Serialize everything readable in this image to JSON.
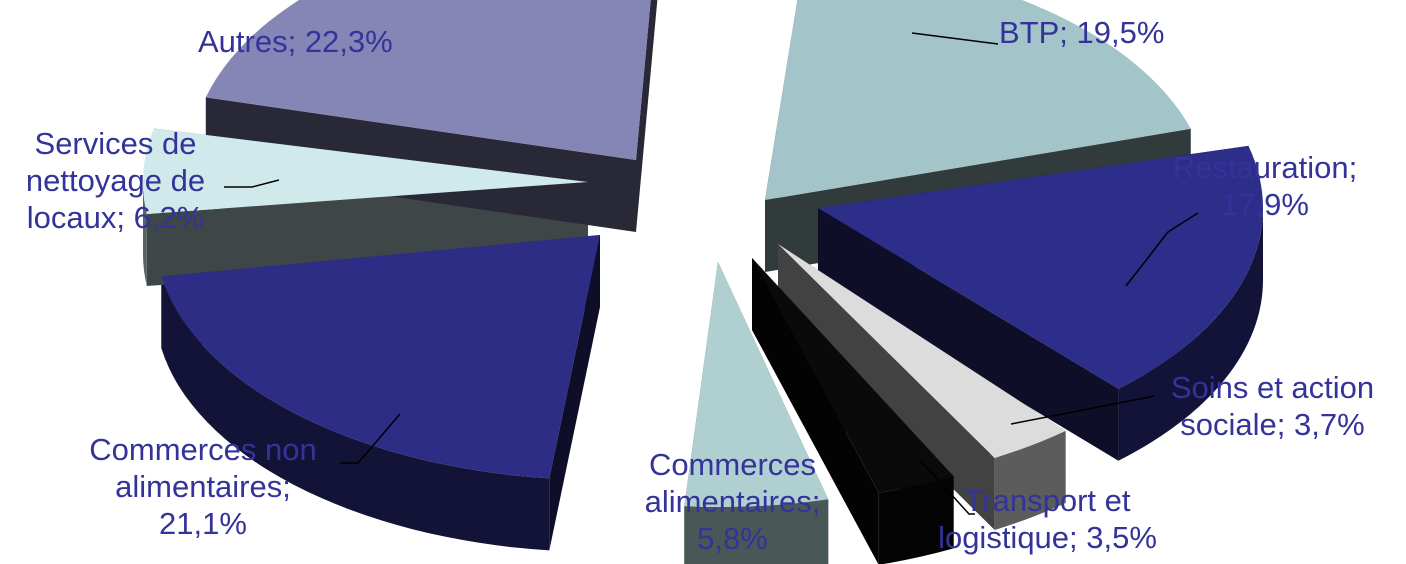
{
  "chart_data": {
    "type": "pie",
    "variant": "3d-exploded",
    "label_color": "#33339a",
    "slices": [
      {
        "name": "BTP",
        "value": 19.5,
        "label_lines": [
          "BTP; 19,5%"
        ],
        "color": "#a3c4c8"
      },
      {
        "name": "Restauration",
        "value": 17.9,
        "label_lines": [
          "Restauration;",
          "17,9%"
        ],
        "color": "#2d2d8a"
      },
      {
        "name": "Soins et action sociale",
        "value": 3.7,
        "label_lines": [
          "Soins et action",
          "sociale; 3,7%"
        ],
        "color": "#dcdcdc"
      },
      {
        "name": "Transport et logistique",
        "value": 3.5,
        "label_lines": [
          "Transport et",
          "logistique; 3,5%"
        ],
        "color": "#0a0a0a"
      },
      {
        "name": "Commerces alimentaires",
        "value": 5.8,
        "label_lines": [
          "Commerces",
          "alimentaires;",
          "5,8%"
        ],
        "color": "#b0cfd0"
      },
      {
        "name": "Commerces non alimentaires",
        "value": 21.1,
        "label_lines": [
          "Commerces non",
          "alimentaires;",
          "21,1%"
        ],
        "color": "#2d2d85"
      },
      {
        "name": "Services de nettoyage de locaux",
        "value": 6.2,
        "label_lines": [
          "Services de",
          "nettoyage de",
          "locaux; 6,2%"
        ],
        "color": "#d0eaec"
      },
      {
        "name": "Autres",
        "value": 22.3,
        "label_lines": [
          "Autres; 22,3%"
        ],
        "color": "#8585b6"
      }
    ]
  }
}
